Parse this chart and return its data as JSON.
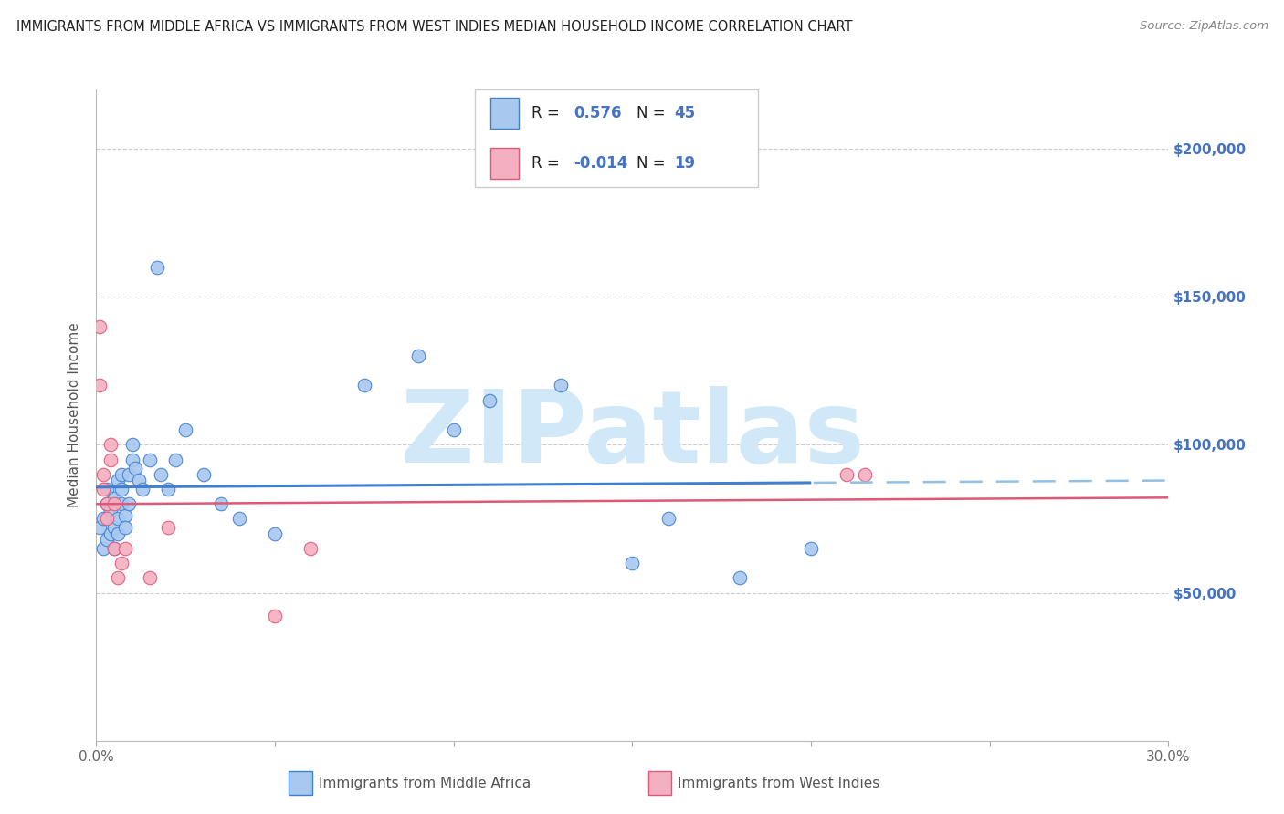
{
  "title": "IMMIGRANTS FROM MIDDLE AFRICA VS IMMIGRANTS FROM WEST INDIES MEDIAN HOUSEHOLD INCOME CORRELATION CHART",
  "source": "Source: ZipAtlas.com",
  "ylabel": "Median Household Income",
  "xlim": [
    0.0,
    0.3
  ],
  "ylim": [
    0,
    220000
  ],
  "yticks": [
    0,
    50000,
    100000,
    150000,
    200000
  ],
  "xticks": [
    0.0,
    0.05,
    0.1,
    0.15,
    0.2,
    0.25,
    0.3
  ],
  "blue_color": "#A8C8F0",
  "pink_color": "#F4B0C0",
  "blue_line_color": "#4080D0",
  "pink_line_color": "#E05878",
  "dashed_line_color": "#90C0E8",
  "watermark": "ZIPatlas",
  "watermark_color": "#D0E8F8",
  "right_axis_color": "#4472C4",
  "blue_x": [
    0.001,
    0.002,
    0.002,
    0.003,
    0.003,
    0.003,
    0.004,
    0.004,
    0.005,
    0.005,
    0.005,
    0.006,
    0.006,
    0.006,
    0.007,
    0.007,
    0.007,
    0.008,
    0.008,
    0.009,
    0.009,
    0.01,
    0.01,
    0.011,
    0.012,
    0.013,
    0.015,
    0.017,
    0.018,
    0.02,
    0.022,
    0.025,
    0.03,
    0.035,
    0.04,
    0.05,
    0.075,
    0.09,
    0.1,
    0.11,
    0.13,
    0.15,
    0.16,
    0.18,
    0.2
  ],
  "blue_y": [
    72000,
    65000,
    75000,
    80000,
    68000,
    85000,
    70000,
    78000,
    72000,
    82000,
    65000,
    75000,
    88000,
    70000,
    80000,
    85000,
    90000,
    76000,
    72000,
    80000,
    90000,
    95000,
    100000,
    92000,
    88000,
    85000,
    95000,
    160000,
    90000,
    85000,
    95000,
    105000,
    90000,
    80000,
    75000,
    70000,
    120000,
    130000,
    105000,
    115000,
    120000,
    60000,
    75000,
    55000,
    65000
  ],
  "pink_x": [
    0.001,
    0.001,
    0.002,
    0.002,
    0.003,
    0.003,
    0.004,
    0.004,
    0.005,
    0.005,
    0.006,
    0.007,
    0.008,
    0.015,
    0.02,
    0.05,
    0.06,
    0.21,
    0.215
  ],
  "pink_y": [
    140000,
    120000,
    85000,
    90000,
    75000,
    80000,
    100000,
    95000,
    80000,
    65000,
    55000,
    60000,
    65000,
    55000,
    72000,
    42000,
    65000,
    90000,
    90000
  ]
}
